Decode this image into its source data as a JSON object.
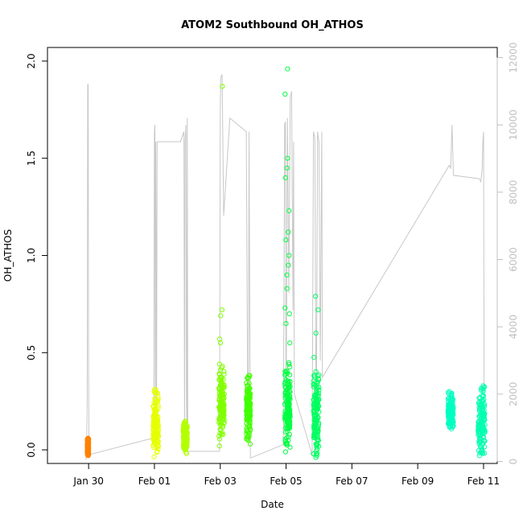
{
  "chart_data": {
    "type": "scatter",
    "title": "ATOM2 Southbound OH_ATHOS",
    "xlabel": "Date",
    "ylabel": "OH_ATHOS",
    "xlim": [
      "2017-01-28T18:00",
      "2017-02-11T10:00"
    ],
    "ylim": [
      -0.07,
      2.07
    ],
    "y2lim": [
      -60,
      12300
    ],
    "x_ticks": [
      "2017-01-30",
      "2017-02-01",
      "2017-02-03",
      "2017-02-05",
      "2017-02-07",
      "2017-02-09",
      "2017-02-11"
    ],
    "x_tick_labels": [
      "Jan 30",
      "Feb 01",
      "Feb 03",
      "Feb 05",
      "Feb 07",
      "Feb 09",
      "Feb 11"
    ],
    "y_ticks": [
      0.0,
      0.5,
      1.0,
      1.5,
      2.0
    ],
    "y_tick_labels": [
      "0.0",
      "0.5",
      "1.0",
      "1.5",
      "2.0"
    ],
    "y2_ticks": [
      0,
      2000,
      4000,
      6000,
      8000,
      10000,
      12000
    ],
    "y2_tick_labels": [
      "0",
      "2000",
      "4000",
      "6000",
      "8000",
      "10000",
      "12000"
    ],
    "grid": false,
    "colors": {
      "altitude_line": "#c8c8c8",
      "right_axis": "#c0c0c0",
      "flight1": "#ff8000",
      "flight2": "#e6ff00",
      "flight3": "#b3ff00",
      "flight4": "#80ff00",
      "flight5": "#40ff00",
      "flight6": "#00ff40",
      "flight7": "#00ff60",
      "flight8": "#00ffc0",
      "flight9": "#00ffb0"
    },
    "series": [
      {
        "color_key": "flight1",
        "x": [
          "2017-01-29T23:00",
          "2017-01-30T00:00"
        ],
        "y_min": -0.03,
        "y_max": 0.06,
        "outliers": [
          0.06
        ]
      },
      {
        "color_key": "flight2",
        "x": [
          "2017-01-31T23:00",
          "2017-02-01T03:00"
        ],
        "y_min": -0.04,
        "y_max": 0.31,
        "outliers": [
          0.31,
          0.24
        ]
      },
      {
        "color_key": "flight3",
        "x": [
          "2017-02-01T21:00",
          "2017-02-02T00:00"
        ],
        "y_min": -0.02,
        "y_max": 0.15,
        "outliers": [
          0.14
        ]
      },
      {
        "color_key": "flight4",
        "x": [
          "2017-02-02T23:00",
          "2017-02-03T03:00"
        ],
        "y_min": 0.05,
        "y_max": 0.45,
        "outliers": [
          1.87,
          0.72,
          0.69,
          0.57,
          0.55,
          0.02
        ]
      },
      {
        "color_key": "flight5",
        "x": [
          "2017-02-03T19:00",
          "2017-02-03T22:00"
        ],
        "y_min": 0.05,
        "y_max": 0.39,
        "outliers": [
          0.05,
          0.03
        ]
      },
      {
        "color_key": "flight6",
        "x": [
          "2017-02-04T23:00",
          "2017-02-05T03:00"
        ],
        "y_min": 0.01,
        "y_max": 0.45,
        "outliers": [
          1.96,
          1.83,
          1.5,
          1.45,
          1.4,
          1.23,
          1.12,
          1.08,
          1.0,
          0.95,
          0.9,
          0.83,
          0.73,
          0.7,
          0.65,
          0.55,
          -0.01
        ]
      },
      {
        "color_key": "flight7",
        "x": [
          "2017-02-05T20:00",
          "2017-02-06T00:00"
        ],
        "y_min": -0.04,
        "y_max": 0.48,
        "outliers": [
          0.79,
          0.72,
          0.6,
          -0.02,
          -0.03
        ]
      },
      {
        "color_key": "flight8",
        "x": [
          "2017-02-09T22:00",
          "2017-02-10T02:00"
        ],
        "y_min": 0.1,
        "y_max": 0.3,
        "outliers": [
          0.3
        ]
      },
      {
        "color_key": "flight9",
        "x": [
          "2017-02-10T20:00",
          "2017-02-11T01:00"
        ],
        "y_min": -0.02,
        "y_max": 0.33,
        "outliers": [
          0.33,
          -0.03
        ]
      }
    ],
    "altitude": [
      [
        "2017-01-29T22:00",
        50
      ],
      [
        "2017-01-29T22:30",
        300
      ],
      [
        "2017-01-29T23:00",
        1800
      ],
      [
        "2017-01-29T23:20",
        11200
      ],
      [
        "2017-01-29T23:40",
        11200
      ],
      [
        "2017-01-30T00:00",
        3000
      ],
      [
        "2017-01-30T00:15",
        200
      ],
      [
        "2017-01-31T23:30",
        700
      ],
      [
        "2017-02-01T00:00",
        9800
      ],
      [
        "2017-02-01T00:20",
        10000
      ],
      [
        "2017-02-01T00:40",
        500
      ],
      [
        "2017-02-01T01:00",
        9500
      ],
      [
        "2017-02-01T01:15",
        6000
      ],
      [
        "2017-02-01T01:30",
        1000
      ],
      [
        "2017-02-01T02:00",
        9500
      ],
      [
        "2017-02-01T04:00",
        9500
      ],
      [
        "2017-02-01T19:00",
        9500
      ],
      [
        "2017-02-01T21:30",
        9800
      ],
      [
        "2017-02-01T22:00",
        500
      ],
      [
        "2017-02-01T22:20",
        9500
      ],
      [
        "2017-02-01T23:00",
        10000
      ],
      [
        "2017-02-01T23:20",
        2000
      ],
      [
        "2017-02-01T23:40",
        700
      ],
      [
        "2017-02-02T00:00",
        10200
      ],
      [
        "2017-02-02T00:20",
        300
      ],
      [
        "2017-02-02T23:30",
        300
      ],
      [
        "2017-02-03T00:00",
        10200
      ],
      [
        "2017-02-03T00:20",
        11400
      ],
      [
        "2017-02-03T01:20",
        11500
      ],
      [
        "2017-02-03T01:40",
        10300
      ],
      [
        "2017-02-03T02:30",
        7300
      ],
      [
        "2017-02-03T07:00",
        10200
      ],
      [
        "2017-02-03T19:00",
        9800
      ],
      [
        "2017-02-03T20:00",
        2000
      ],
      [
        "2017-02-03T20:30",
        700
      ],
      [
        "2017-02-03T21:00",
        9800
      ],
      [
        "2017-02-03T22:00",
        100
      ],
      [
        "2017-02-04T22:00",
        500
      ],
      [
        "2017-02-04T23:00",
        10000
      ],
      [
        "2017-02-04T23:30",
        10100
      ],
      [
        "2017-02-05T00:00",
        500
      ],
      [
        "2017-02-05T01:00",
        10200
      ],
      [
        "2017-02-05T02:00",
        5000
      ],
      [
        "2017-02-05T03:00",
        10800
      ],
      [
        "2017-02-05T04:00",
        11000
      ],
      [
        "2017-02-05T05:00",
        4500
      ],
      [
        "2017-02-05T05:30",
        9500
      ],
      [
        "2017-02-05T06:00",
        2000
      ],
      [
        "2017-02-05T19:00",
        200
      ],
      [
        "2017-02-05T20:00",
        9800
      ],
      [
        "2017-02-05T21:00",
        9600
      ],
      [
        "2017-02-05T22:00",
        500
      ],
      [
        "2017-02-05T23:00",
        9800
      ],
      [
        "2017-02-06T00:00",
        9500
      ],
      [
        "2017-02-06T01:00",
        3000
      ],
      [
        "2017-02-06T02:00",
        9800
      ],
      [
        "2017-02-06T02:30",
        2500
      ],
      [
        "2017-02-09T23:00",
        8800
      ],
      [
        "2017-02-10T00:00",
        8700
      ],
      [
        "2017-02-10T01:00",
        10000
      ],
      [
        "2017-02-10T02:00",
        8500
      ],
      [
        "2017-02-10T21:00",
        8400
      ],
      [
        "2017-02-10T22:00",
        8300
      ],
      [
        "2017-02-10T23:00",
        8700
      ],
      [
        "2017-02-10T23:30",
        9500
      ],
      [
        "2017-02-11T00:00",
        9800
      ],
      [
        "2017-02-11T00:30",
        200
      ]
    ]
  }
}
